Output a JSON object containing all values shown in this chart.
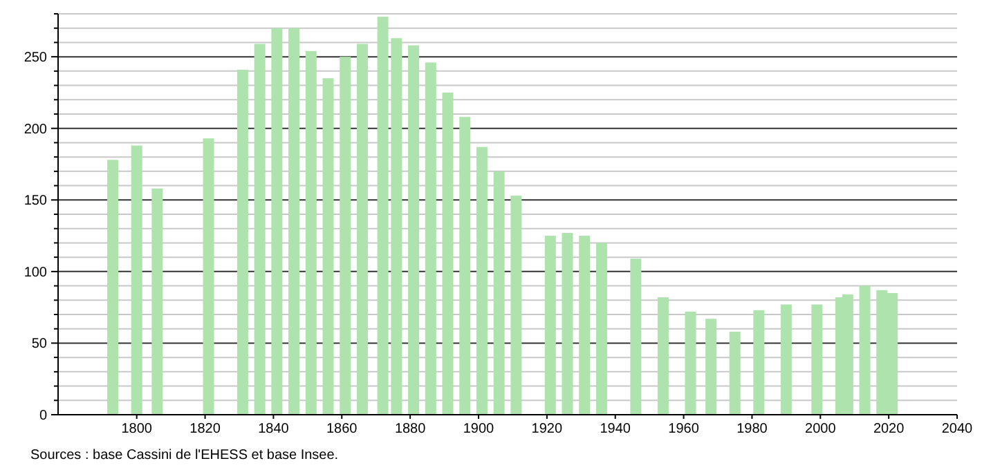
{
  "chart_data": {
    "type": "bar",
    "x": [
      1793,
      1800,
      1806,
      1821,
      1831,
      1836,
      1841,
      1846,
      1851,
      1856,
      1861,
      1866,
      1872,
      1876,
      1881,
      1886,
      1891,
      1896,
      1901,
      1906,
      1911,
      1921,
      1926,
      1931,
      1936,
      1946,
      1954,
      1962,
      1968,
      1975,
      1982,
      1990,
      1999,
      2006,
      2008,
      2013,
      2018,
      2021
    ],
    "values": [
      178,
      188,
      158,
      193,
      241,
      259,
      270,
      270,
      254,
      235,
      250,
      259,
      278,
      263,
      258,
      246,
      225,
      208,
      187,
      170,
      153,
      125,
      127,
      125,
      120,
      109,
      82,
      72,
      67,
      58,
      73,
      77,
      77,
      82,
      84,
      90,
      87,
      85
    ],
    "color": "#aee3ae",
    "xlim": [
      1777,
      2040
    ],
    "xticks": [
      1800,
      1820,
      1840,
      1860,
      1880,
      1900,
      1920,
      1940,
      1960,
      1980,
      2000,
      2020,
      2040
    ],
    "ylim": [
      0,
      280
    ],
    "yticks": [
      0,
      {
        "value": 10,
        "label": null
      },
      {
        "value": 20,
        "label": null
      },
      {
        "value": 30,
        "label": null
      },
      {
        "value": 40,
        "label": null
      },
      50,
      {
        "value": 60,
        "label": null
      },
      {
        "value": 70,
        "label": null
      },
      {
        "value": 80,
        "label": null
      },
      {
        "value": 90,
        "label": null
      },
      100,
      {
        "value": 110,
        "label": null
      },
      {
        "value": 120,
        "label": null
      },
      {
        "value": 130,
        "label": null
      },
      {
        "value": 140,
        "label": null
      },
      150,
      {
        "value": 160,
        "label": null
      },
      {
        "value": 170,
        "label": null
      },
      {
        "value": 180,
        "label": null
      },
      {
        "value": 190,
        "label": null
      },
      200,
      {
        "value": 210,
        "label": null
      },
      {
        "value": 220,
        "label": null
      },
      {
        "value": 230,
        "label": null
      },
      {
        "value": 240,
        "label": null
      },
      250,
      {
        "value": 260,
        "label": null
      },
      {
        "value": 270,
        "label": null
      },
      {
        "value": 280,
        "label": null
      }
    ],
    "grid": "y",
    "annotations": [
      "Sources : base Cassini de l'EHESS et base Insee."
    ]
  }
}
